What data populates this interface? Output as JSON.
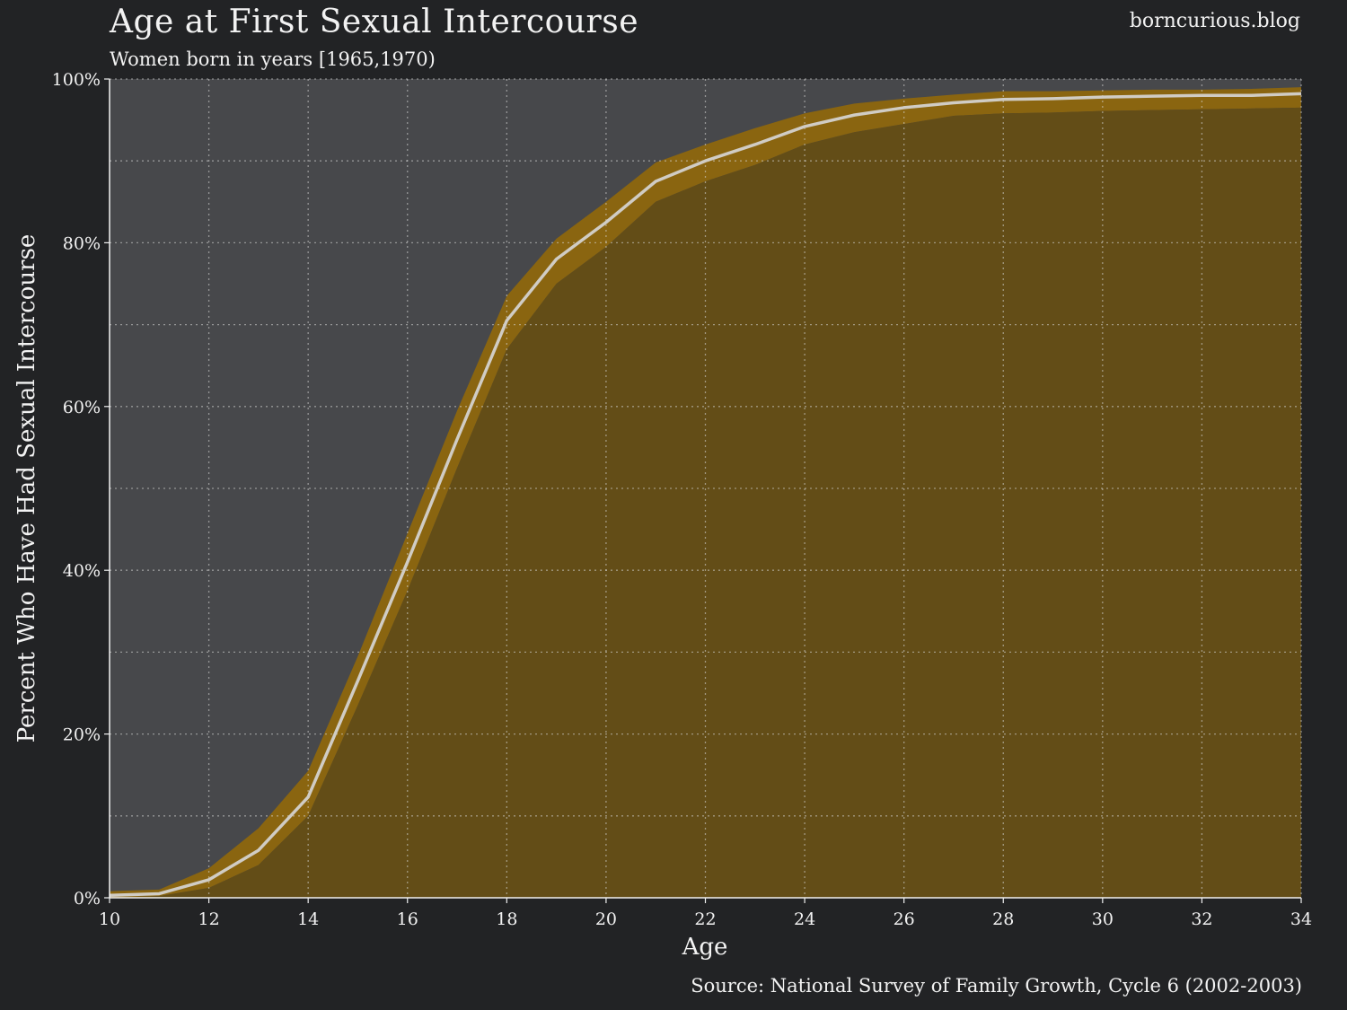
{
  "header": {
    "site": "borncurious.blog"
  },
  "footer": {
    "source": "Source: National Survey of Family Growth, Cycle 6 (2002-2003)"
  },
  "colors": {
    "background": "#222325",
    "plot_background": "#47484b",
    "filled_area": "#634d17",
    "confidence_band": "#8a6510",
    "line": "#d0ccc4",
    "text": "#f2f2f2"
  },
  "chart_data": {
    "type": "area",
    "title": "Age at First Sexual Intercourse",
    "subtitle": "Women born in years [1965,1970)",
    "xlabel": "Age",
    "ylabel": "Percent Who Have Had Sexual Intercourse",
    "xlim": [
      10,
      34
    ],
    "ylim": [
      0,
      100
    ],
    "x_ticks": [
      10,
      12,
      14,
      16,
      18,
      20,
      22,
      24,
      26,
      28,
      30,
      32,
      34
    ],
    "y_ticks": [
      0,
      20,
      40,
      60,
      80,
      100
    ],
    "y_tick_labels": [
      "0%",
      "20%",
      "40%",
      "60%",
      "80%",
      "100%"
    ],
    "y_minor_gridlines": [
      10,
      30,
      50,
      70,
      90
    ],
    "grid": true,
    "x": [
      10,
      11,
      12,
      13,
      14,
      15,
      16,
      17,
      18,
      19,
      20,
      21,
      22,
      23,
      24,
      25,
      26,
      27,
      28,
      29,
      30,
      31,
      32,
      33,
      34
    ],
    "series": [
      {
        "values": [
          0.3,
          0.5,
          2.2,
          5.8,
          12.3,
          26.5,
          41.0,
          56.0,
          70.5,
          78.0,
          82.5,
          87.5,
          90.0,
          92.0,
          94.2,
          95.6,
          96.5,
          97.1,
          97.5,
          97.6,
          97.8,
          97.9,
          98.0,
          98.0,
          98.2
        ],
        "lower": [
          0.0,
          0.2,
          1.2,
          4.0,
          10.0,
          23.5,
          37.5,
          52.5,
          67.0,
          75.0,
          79.5,
          85.0,
          87.5,
          89.5,
          92.0,
          93.5,
          94.5,
          95.5,
          95.8,
          95.9,
          96.1,
          96.2,
          96.3,
          96.4,
          96.5
        ],
        "upper": [
          0.8,
          1.0,
          3.6,
          8.5,
          15.5,
          29.5,
          44.5,
          59.5,
          73.5,
          80.5,
          85.0,
          89.8,
          92.0,
          94.0,
          95.8,
          97.0,
          97.6,
          98.1,
          98.5,
          98.5,
          98.6,
          98.7,
          98.7,
          98.8,
          99.0
        ]
      }
    ]
  }
}
